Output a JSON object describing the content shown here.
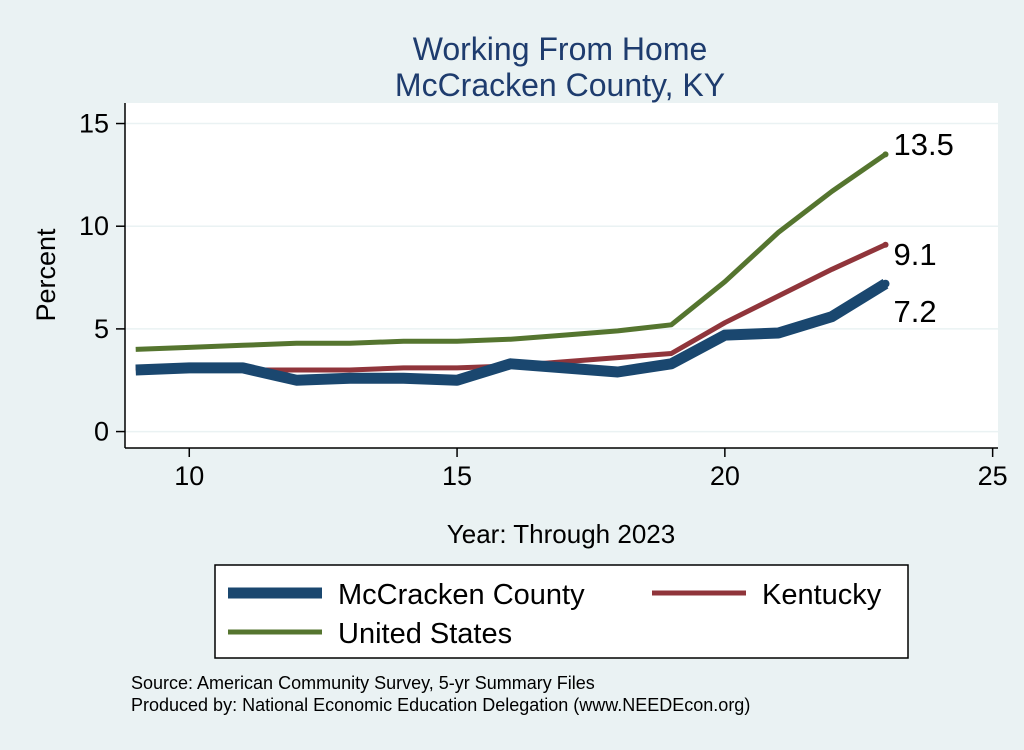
{
  "chart_data": {
    "type": "line",
    "title": [
      "Working From Home",
      "McCracken County, KY"
    ],
    "xlabel": "Year: Through 2023",
    "ylabel": "Percent",
    "xlim": [
      8.8,
      25.1
    ],
    "ylim": [
      -0.8,
      16
    ],
    "xticks": [
      10,
      15,
      20,
      25
    ],
    "yticks": [
      0,
      5,
      10,
      15
    ],
    "grid": "horizontal",
    "legend_position": "bottom",
    "x": [
      9,
      10,
      11,
      12,
      13,
      14,
      15,
      16,
      17,
      18,
      19,
      20,
      21,
      22,
      23
    ],
    "series": [
      {
        "name": "McCracken County",
        "color": "#1a476f",
        "values": [
          3.0,
          3.1,
          3.1,
          2.5,
          2.6,
          2.6,
          2.5,
          3.3,
          3.1,
          2.9,
          3.3,
          4.7,
          4.8,
          5.6,
          7.2
        ],
        "end_label": "7.2"
      },
      {
        "name": "Kentucky",
        "color": "#90353b",
        "values": [
          3.1,
          3.0,
          3.0,
          3.0,
          3.0,
          3.1,
          3.1,
          3.2,
          3.4,
          3.6,
          3.8,
          5.3,
          6.6,
          7.9,
          9.1
        ],
        "end_label": "9.1"
      },
      {
        "name": "United States",
        "color": "#55752f",
        "values": [
          4.0,
          4.1,
          4.2,
          4.3,
          4.3,
          4.4,
          4.4,
          4.5,
          4.7,
          4.9,
          5.2,
          7.3,
          9.7,
          11.7,
          13.5
        ],
        "end_label": "13.5"
      }
    ]
  },
  "footer": {
    "source": "Source: American Community Survey, 5-yr Summary Files",
    "producer": "Produced by: National Economic Education Delegation (www.NEEDEcon.org)"
  }
}
